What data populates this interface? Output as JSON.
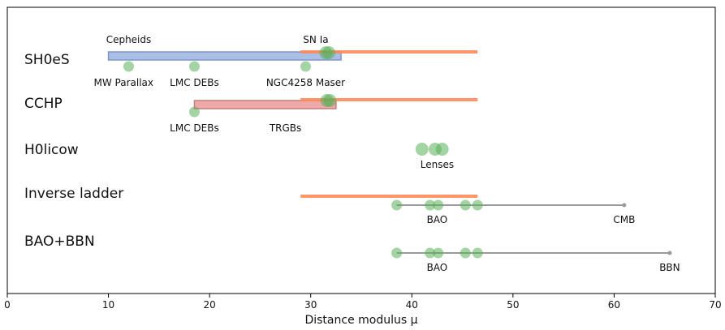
{
  "chart_data": {
    "type": "scatter",
    "xlabel": "Distance modulus μ",
    "xlim": [
      0,
      70
    ],
    "x_ticks": [
      0,
      10,
      20,
      30,
      40,
      50,
      60,
      70
    ],
    "grid": false,
    "rows": [
      {
        "label": "SH0eS",
        "bars": [
          {
            "from": 10,
            "to": 33,
            "kind": "blue"
          },
          {
            "from": 29,
            "to": 46.5,
            "kind": "orange"
          }
        ],
        "points": [
          {
            "x": 12,
            "lane": "low"
          },
          {
            "x": 18.5,
            "lane": "low"
          },
          {
            "x": 29.5,
            "lane": "low"
          },
          {
            "x": 31.5,
            "lane": "high"
          },
          {
            "x": 31.8,
            "lane": "high"
          }
        ],
        "annotations": [
          {
            "text": "Cepheids",
            "x": 12,
            "lane": "above"
          },
          {
            "text": "SN Ia",
            "x": 30.5,
            "lane": "above"
          },
          {
            "text": "MW Parallax",
            "x": 11.5,
            "lane": "below"
          },
          {
            "text": "LMC DEBs",
            "x": 18.5,
            "lane": "below"
          },
          {
            "text": "NGC4258 Maser",
            "x": 29.5,
            "lane": "below"
          }
        ]
      },
      {
        "label": "CCHP",
        "bars": [
          {
            "from": 18.5,
            "to": 32.5,
            "kind": "red"
          },
          {
            "from": 29,
            "to": 46.5,
            "kind": "orange"
          }
        ],
        "points": [
          {
            "x": 18.5,
            "lane": "low"
          },
          {
            "x": 31.6,
            "lane": "high"
          },
          {
            "x": 31.9,
            "lane": "high"
          }
        ],
        "annotations": [
          {
            "text": "LMC DEBs",
            "x": 18.5,
            "lane": "below"
          },
          {
            "text": "TRGBs",
            "x": 27.5,
            "lane": "below"
          }
        ]
      },
      {
        "label": "H0licow",
        "bars": [],
        "points": [
          {
            "x": 41,
            "lane": "mid"
          },
          {
            "x": 42.3,
            "lane": "mid"
          },
          {
            "x": 43,
            "lane": "mid"
          }
        ],
        "annotations": [
          {
            "text": "Lenses",
            "x": 42.5,
            "lane": "below"
          }
        ]
      },
      {
        "label": "Inverse ladder",
        "bars": [
          {
            "from": 29,
            "to": 46.5,
            "kind": "orange"
          },
          {
            "from": 38.5,
            "to": 61,
            "kind": "gray"
          }
        ],
        "points": [
          {
            "x": 38.5,
            "lane": "low"
          },
          {
            "x": 41.8,
            "lane": "low"
          },
          {
            "x": 42.6,
            "lane": "low"
          },
          {
            "x": 45.3,
            "lane": "low"
          },
          {
            "x": 46.5,
            "lane": "low"
          },
          {
            "x": 61,
            "lane": "low"
          }
        ],
        "annotations": [
          {
            "text": "BAO",
            "x": 42.5,
            "lane": "below"
          },
          {
            "text": "CMB",
            "x": 61,
            "lane": "below"
          }
        ]
      },
      {
        "label": "BAO+BBN",
        "bars": [
          {
            "from": 38.5,
            "to": 65.5,
            "kind": "gray"
          }
        ],
        "points": [
          {
            "x": 38.5,
            "lane": "mid"
          },
          {
            "x": 41.8,
            "lane": "mid"
          },
          {
            "x": 42.6,
            "lane": "mid"
          },
          {
            "x": 45.3,
            "lane": "mid"
          },
          {
            "x": 46.5,
            "lane": "mid"
          },
          {
            "x": 65.5,
            "lane": "mid"
          }
        ],
        "annotations": [
          {
            "text": "BAO",
            "x": 42.5,
            "lane": "below"
          },
          {
            "text": "BBN",
            "x": 65.5,
            "lane": "below"
          }
        ]
      }
    ]
  },
  "colors": {
    "blue_fill": "#aabfe6",
    "blue_edge": "#7f95c9",
    "red_fill": "#f0a9a9",
    "red_edge": "#c77b7b",
    "orange": "#ff8a58",
    "gray": "#9a9a9a",
    "green": "#5aae5a"
  }
}
